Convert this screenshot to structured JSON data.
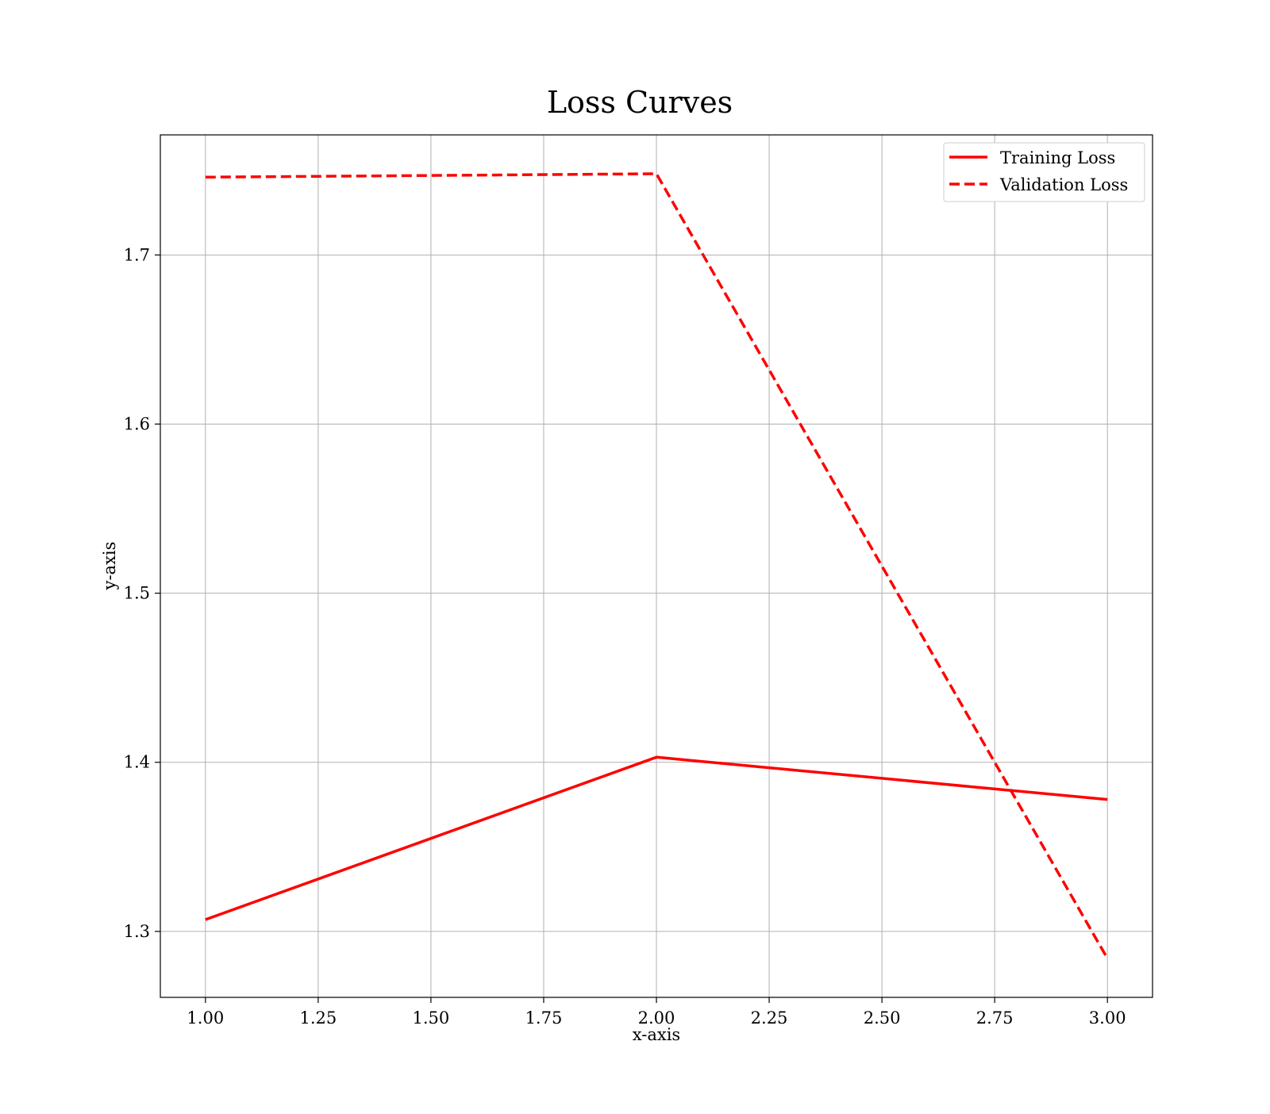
{
  "chart_data": {
    "type": "line",
    "title": "Loss Curves",
    "xlabel": "x-axis",
    "ylabel": "y-axis",
    "xlim": [
      0.9,
      3.1
    ],
    "ylim": [
      1.261,
      1.771
    ],
    "x_ticks": [
      1.0,
      1.25,
      1.5,
      1.75,
      2.0,
      2.25,
      2.5,
      2.75,
      3.0
    ],
    "x_tick_labels": [
      "1.00",
      "1.25",
      "1.50",
      "1.75",
      "2.00",
      "2.25",
      "2.50",
      "2.75",
      "3.00"
    ],
    "y_ticks": [
      1.3,
      1.4,
      1.5,
      1.6,
      1.7
    ],
    "y_tick_labels": [
      "1.3",
      "1.4",
      "1.5",
      "1.6",
      "1.7"
    ],
    "grid": true,
    "legend_position": "top-right",
    "series": [
      {
        "name": "Training Loss",
        "x": [
          1,
          2,
          3
        ],
        "y": [
          1.307,
          1.403,
          1.378
        ],
        "color": "#ff0000",
        "style": "solid"
      },
      {
        "name": "Validation Loss",
        "x": [
          1,
          2,
          3
        ],
        "y": [
          1.746,
          1.748,
          1.284
        ],
        "color": "#ff0000",
        "style": "dashed"
      }
    ]
  }
}
